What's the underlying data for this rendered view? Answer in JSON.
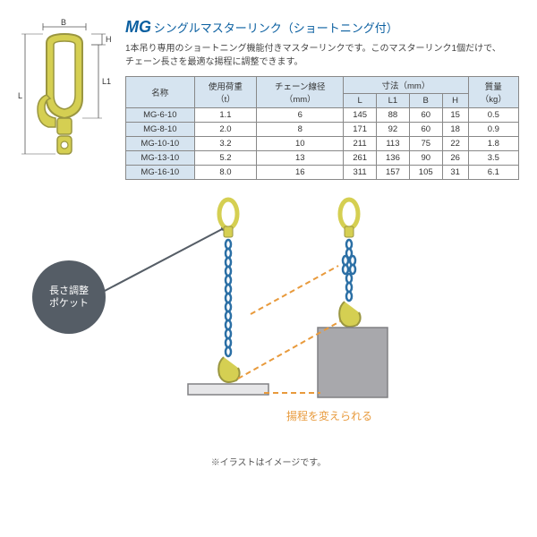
{
  "title": {
    "code": "MG",
    "rest": "シングルマスターリンク（ショートニング付）"
  },
  "desc_line1": "1本吊り専用のショートニング機能付きマスターリンクです。このマスターリンク1個だけで、",
  "desc_line2": "チェーン長さを最適な揚程に調整できます。",
  "headers": {
    "name": "名称",
    "load": "使用荷重",
    "load_unit": "（t）",
    "chain": "チェーン線径",
    "chain_unit": "（mm）",
    "dims": "寸法（mm）",
    "L": "L",
    "L1": "L1",
    "B": "B",
    "H": "H",
    "mass": "質量",
    "mass_unit": "（kg）"
  },
  "rows": [
    {
      "name": "MG-6-10",
      "load": "1.1",
      "chain": "6",
      "L": "145",
      "L1": "88",
      "B": "60",
      "H": "15",
      "mass": "0.5"
    },
    {
      "name": "MG-8-10",
      "load": "2.0",
      "chain": "8",
      "L": "171",
      "L1": "92",
      "B": "60",
      "H": "18",
      "mass": "0.9"
    },
    {
      "name": "MG-10-10",
      "load": "3.2",
      "chain": "10",
      "L": "211",
      "L1": "113",
      "B": "75",
      "H": "22",
      "mass": "1.8"
    },
    {
      "name": "MG-13-10",
      "load": "5.2",
      "chain": "13",
      "L": "261",
      "L1": "136",
      "B": "90",
      "H": "26",
      "mass": "3.5"
    },
    {
      "name": "MG-16-10",
      "load": "8.0",
      "chain": "16",
      "L": "311",
      "L1": "157",
      "B": "105",
      "H": "31",
      "mass": "6.1"
    }
  ],
  "callout": "長さ調整\nポケット",
  "change_label": "揚程を変えられる",
  "illust_note": "※イラストはイメージです。",
  "dim_labels": {
    "B": "B",
    "H": "H",
    "L": "L",
    "L1": "L1"
  },
  "colors": {
    "brand_blue": "#0a5fa0",
    "header_bg": "#d6e4f0",
    "callout_bg": "#555d66",
    "orange": "#e89a3c",
    "link_yellow": "#d5cf52",
    "link_stroke": "#9a9640",
    "chain_blue": "#2b6fa5",
    "gray_box": "#808084",
    "dim_line": "#555"
  }
}
